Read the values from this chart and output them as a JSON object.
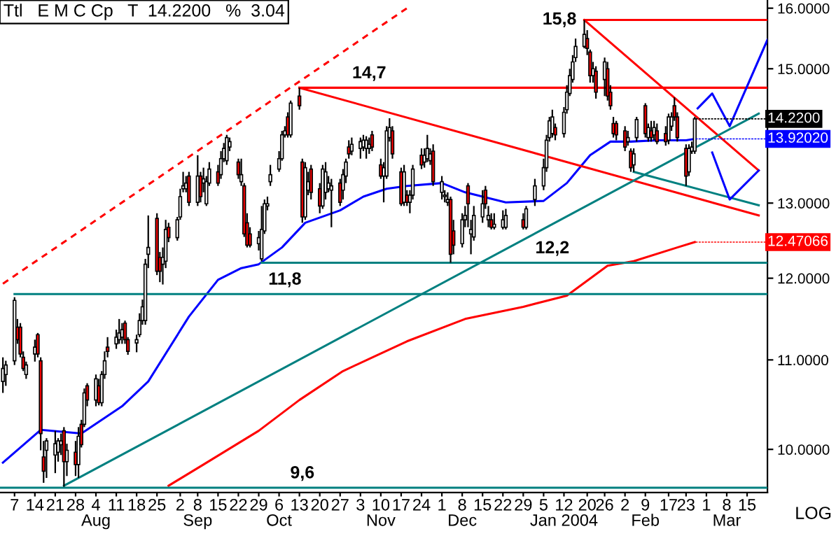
{
  "chart_data": {
    "type": "candlestick",
    "title": "Ttl   E M C Cp   T  14.2200   %  3.04",
    "log": true,
    "legend": false,
    "grid": false,
    "ylim": [
      9.55,
      16.14
    ],
    "xlim": [
      "2003-07-02",
      "2004-03-22"
    ],
    "xticks": [
      {
        "value": "2003-07-07",
        "label": "7"
      },
      {
        "value": "2003-07-14",
        "label": "14"
      },
      {
        "value": "2003-07-21",
        "label": "21"
      },
      {
        "value": "2003-07-28",
        "label": "28"
      },
      {
        "value": "2003-08-04",
        "label": "4\nAug"
      },
      {
        "value": "2003-08-11",
        "label": "11"
      },
      {
        "value": "2003-08-18",
        "label": "18"
      },
      {
        "value": "2003-08-25",
        "label": "25"
      },
      {
        "value": "2003-09-02",
        "label": "2"
      },
      {
        "value": "2003-09-08",
        "label": "8\nSep"
      },
      {
        "value": "2003-09-15",
        "label": "15"
      },
      {
        "value": "2003-09-22",
        "label": "22"
      },
      {
        "value": "2003-09-29",
        "label": "29"
      },
      {
        "value": "2003-10-06",
        "label": "6\nOct"
      },
      {
        "value": "2003-10-13",
        "label": "13"
      },
      {
        "value": "2003-10-20",
        "label": "20"
      },
      {
        "value": "2003-10-27",
        "label": "27"
      },
      {
        "value": "2003-11-03",
        "label": "3"
      },
      {
        "value": "2003-11-10",
        "label": "10\nNov"
      },
      {
        "value": "2003-11-17",
        "label": "17"
      },
      {
        "value": "2003-11-24",
        "label": "24"
      },
      {
        "value": "2003-12-01",
        "label": "1"
      },
      {
        "value": "2003-12-08",
        "label": "8\nDec"
      },
      {
        "value": "2003-12-15",
        "label": "15"
      },
      {
        "value": "2003-12-22",
        "label": "22"
      },
      {
        "value": "2003-12-29",
        "label": "29"
      },
      {
        "value": "2004-01-05",
        "label": "5"
      },
      {
        "value": "2004-01-12",
        "label": "12\nJan 2004"
      },
      {
        "value": "2004-01-20",
        "label": "20"
      },
      {
        "value": "2004-01-26",
        "label": "26"
      },
      {
        "value": "2004-02-02",
        "label": "2"
      },
      {
        "value": "2004-02-09",
        "label": "9\nFeb"
      },
      {
        "value": "2004-02-17",
        "label": "17"
      },
      {
        "value": "2004-02-23",
        "label": "23"
      },
      {
        "value": "2004-03-01",
        "label": "1"
      },
      {
        "value": "2004-03-08",
        "label": "8\nMar"
      },
      {
        "value": "2004-03-15",
        "label": "15"
      }
    ],
    "yticks": [
      {
        "value": 10,
        "label": "10.0000"
      },
      {
        "value": 11,
        "label": "11.0000"
      },
      {
        "value": 12,
        "label": "12.0000"
      },
      {
        "value": 13,
        "label": "13.0000"
      },
      {
        "value": 15,
        "label": "15.0000"
      },
      {
        "value": 16,
        "label": "16.0000"
      }
    ],
    "annotations": [
      {
        "text": "15,8",
        "x": "2004-01-19",
        "y": 15.8
      },
      {
        "text": "14,7",
        "x": "2003-11-06",
        "y": 14.7
      },
      {
        "text": "12,2",
        "x": "2004-01-08",
        "y": 12.2
      },
      {
        "text": "11,8",
        "x": "2003-10-08",
        "y": 11.8
      },
      {
        "text": "9,6",
        "x": "2003-10-14",
        "y": 9.6
      },
      "LOG"
    ],
    "series": [
      {
        "color": "#000000",
        "x": [
          "2003-07-03",
          "2003-07-04",
          "2003-07-07",
          "2003-07-08",
          "2003-07-09",
          "2003-07-10",
          "2003-07-11",
          "2003-07-14",
          "2003-07-15",
          "2003-07-16",
          "2003-07-17",
          "2003-07-18",
          "2003-07-21",
          "2003-07-22",
          "2003-07-23",
          "2003-07-24",
          "2003-07-25",
          "2003-07-28",
          "2003-07-29",
          "2003-07-30",
          "2003-07-31",
          "2003-08-01",
          "2003-08-04",
          "2003-08-05",
          "2003-08-06",
          "2003-08-07",
          "2003-08-08",
          "2003-08-11",
          "2003-08-12",
          "2003-08-13",
          "2003-08-14",
          "2003-08-15",
          "2003-08-18",
          "2003-08-19",
          "2003-08-20",
          "2003-08-21",
          "2003-08-22",
          "2003-08-25",
          "2003-08-26",
          "2003-08-27",
          "2003-08-28",
          "2003-08-29",
          "2003-09-01",
          "2003-09-02",
          "2003-09-03",
          "2003-09-04",
          "2003-09-05",
          "2003-09-08",
          "2003-09-09",
          "2003-09-10",
          "2003-09-11",
          "2003-09-12",
          "2003-09-15",
          "2003-09-16",
          "2003-09-17",
          "2003-09-18",
          "2003-09-19",
          "2003-09-22",
          "2003-09-23",
          "2003-09-24",
          "2003-09-25",
          "2003-09-26",
          "2003-09-29",
          "2003-09-30",
          "2003-10-01",
          "2003-10-02",
          "2003-10-03",
          "2003-10-06",
          "2003-10-07",
          "2003-10-08",
          "2003-10-09",
          "2003-10-10",
          "2003-10-13",
          "2003-10-14",
          "2003-10-15",
          "2003-10-16",
          "2003-10-17",
          "2003-10-20",
          "2003-10-21",
          "2003-10-22",
          "2003-10-23",
          "2003-10-24",
          "2003-10-27",
          "2003-10-28",
          "2003-10-29",
          "2003-10-30",
          "2003-10-31",
          "2003-11-03",
          "2003-11-04",
          "2003-11-05",
          "2003-11-06",
          "2003-11-07",
          "2003-11-10",
          "2003-11-11",
          "2003-11-12",
          "2003-11-13",
          "2003-11-14",
          "2003-11-17",
          "2003-11-18",
          "2003-11-19",
          "2003-11-20",
          "2003-11-21",
          "2003-11-24",
          "2003-11-25",
          "2003-11-26",
          "2003-11-27",
          "2003-11-28",
          "2003-12-01",
          "2003-12-02",
          "2003-12-03",
          "2003-12-04",
          "2003-12-05",
          "2003-12-08",
          "2003-12-09",
          "2003-12-10",
          "2003-12-11",
          "2003-12-12",
          "2003-12-15",
          "2003-12-16",
          "2003-12-17",
          "2003-12-18",
          "2003-12-19",
          "2003-12-22",
          "2003-12-23",
          "2003-12-29",
          "2003-12-30",
          "2004-01-02",
          "2004-01-05",
          "2004-01-06",
          "2004-01-07",
          "2004-01-08",
          "2004-01-09",
          "2004-01-12",
          "2004-01-13",
          "2004-01-14",
          "2004-01-15",
          "2004-01-16",
          "2004-01-19",
          "2004-01-20",
          "2004-01-21",
          "2004-01-22",
          "2004-01-23",
          "2004-01-26",
          "2004-01-27",
          "2004-01-28",
          "2004-01-29",
          "2004-01-30",
          "2004-02-02",
          "2004-02-03",
          "2004-02-04",
          "2004-02-05",
          "2004-02-06",
          "2004-02-09",
          "2004-02-10",
          "2004-02-11",
          "2004-02-12",
          "2004-02-13",
          "2004-02-16",
          "2004-02-17",
          "2004-02-18",
          "2004-02-19",
          "2004-02-20",
          "2004-02-23",
          "2004-02-24",
          "2004-02-25",
          "2004-02-26"
        ],
        "ohlc": [
          [
            10.75,
            11.03,
            10.62,
            10.9
          ],
          [
            10.83,
            10.99,
            10.7,
            10.94
          ],
          [
            10.99,
            11.76,
            10.94,
            11.72
          ],
          [
            11.39,
            11.49,
            11.19,
            11.24
          ],
          [
            11.39,
            11.44,
            11.03,
            11.07
          ],
          [
            11.03,
            11.1,
            10.87,
            10.9
          ],
          [
            10.83,
            10.98,
            10.78,
            10.94
          ],
          [
            11.07,
            11.24,
            10.98,
            11.15
          ],
          [
            11.3,
            11.32,
            11.03,
            11.07
          ],
          [
            10.99,
            11.03,
            9.99,
            10.17
          ],
          [
            9.92,
            10.09,
            9.65,
            9.77
          ],
          [
            9.99,
            10.12,
            9.7,
            10.09
          ],
          [
            9.94,
            10.2,
            9.75,
            10.06
          ],
          [
            9.97,
            10.12,
            9.87,
            10.09
          ],
          [
            10.05,
            10.17,
            9.94,
            10.09
          ],
          [
            10.2,
            10.24,
            9.61,
            9.87
          ],
          [
            9.87,
            10.06,
            9.72,
            9.99
          ],
          [
            9.97,
            10.09,
            9.72,
            9.84
          ],
          [
            9.84,
            10.24,
            9.7,
            10.14
          ],
          [
            10.27,
            10.32,
            10.02,
            10.05
          ],
          [
            10.27,
            10.67,
            10.24,
            10.62
          ],
          [
            10.7,
            10.73,
            10.47,
            10.54
          ],
          [
            10.54,
            10.83,
            10.47,
            10.78
          ],
          [
            10.7,
            10.78,
            10.48,
            10.51
          ],
          [
            10.51,
            10.87,
            10.47,
            10.83
          ],
          [
            10.83,
            11.1,
            10.78,
            10.99
          ],
          [
            11.15,
            11.27,
            11.03,
            11.1
          ],
          [
            11.19,
            11.36,
            11.13,
            11.27
          ],
          [
            11.24,
            11.49,
            11.19,
            11.32
          ],
          [
            11.27,
            11.44,
            11.19,
            11.36
          ],
          [
            11.44,
            11.47,
            11.19,
            11.24
          ],
          [
            11.24,
            11.27,
            11.06,
            11.1
          ],
          [
            11.2,
            11.3,
            11.09,
            11.24
          ],
          [
            11.3,
            11.56,
            11.27,
            11.47
          ],
          [
            11.47,
            11.73,
            11.42,
            11.64
          ],
          [
            11.47,
            12.25,
            11.42,
            12.18
          ],
          [
            12.31,
            12.83,
            12.13,
            12.4
          ],
          [
            12.79,
            12.86,
            12.04,
            12.09
          ],
          [
            12.27,
            12.34,
            11.95,
            12.09
          ],
          [
            12.18,
            12.4,
            11.92,
            12.27
          ],
          [
            12.22,
            12.77,
            12.13,
            12.64
          ],
          [
            12.67,
            12.73,
            12.47,
            12.53
          ],
          [
            12.53,
            12.81,
            12.49,
            12.77
          ],
          [
            12.81,
            13.2,
            12.77,
            13.09
          ],
          [
            13.2,
            13.44,
            13.15,
            13.24
          ],
          [
            13.2,
            13.38,
            13.15,
            13.28
          ],
          [
            13.38,
            13.44,
            12.96,
            13.01
          ],
          [
            13.01,
            13.68,
            12.96,
            13.38
          ],
          [
            13.38,
            13.44,
            13.01,
            13.09
          ],
          [
            13.28,
            13.5,
            13.15,
            13.34
          ],
          [
            12.99,
            13.38,
            12.96,
            13.3
          ],
          [
            13.28,
            13.58,
            13.24,
            13.48
          ],
          [
            13.44,
            13.54,
            13.24,
            13.28
          ],
          [
            13.4,
            13.74,
            13.34,
            13.63
          ],
          [
            13.63,
            13.86,
            13.58,
            13.78
          ],
          [
            13.6,
            13.98,
            13.54,
            13.94
          ],
          [
            13.8,
            13.94,
            13.74,
            13.88
          ],
          [
            13.58,
            13.63,
            13.34,
            13.4
          ],
          [
            13.3,
            13.63,
            13.24,
            13.4
          ],
          [
            13.24,
            13.28,
            12.54,
            12.58
          ],
          [
            12.73,
            12.86,
            12.4,
            12.43
          ],
          [
            12.58,
            12.67,
            12.4,
            12.43
          ],
          [
            12.45,
            12.62,
            12.36,
            12.53
          ],
          [
            12.25,
            12.96,
            12.22,
            12.64
          ],
          [
            12.62,
            13.05,
            12.58,
            12.99
          ],
          [
            12.96,
            13.09,
            12.9,
            12.99
          ],
          [
            13.3,
            13.54,
            13.24,
            13.4
          ],
          [
            13.48,
            13.74,
            13.44,
            13.63
          ],
          [
            13.63,
            14.04,
            13.6,
            13.98
          ],
          [
            13.98,
            14.11,
            13.94,
            14.04
          ],
          [
            14.25,
            14.32,
            13.94,
            13.98
          ],
          [
            13.98,
            14.5,
            13.94,
            14.46
          ],
          [
            14.57,
            14.7,
            14.36,
            14.42
          ],
          [
            13.58,
            13.63,
            12.73,
            12.81
          ],
          [
            12.81,
            13.58,
            12.77,
            13.5
          ],
          [
            13.18,
            13.44,
            13.11,
            13.3
          ],
          [
            13.48,
            13.54,
            13.05,
            13.15
          ],
          [
            13.2,
            13.28,
            12.86,
            12.96
          ],
          [
            12.96,
            13.54,
            12.92,
            13.48
          ],
          [
            13.15,
            13.58,
            13.05,
            13.44
          ],
          [
            13.2,
            13.38,
            13.15,
            13.28
          ],
          [
            13.18,
            13.34,
            12.67,
            13.24
          ],
          [
            13.28,
            13.34,
            12.96,
            13.01
          ],
          [
            13.18,
            13.48,
            13.05,
            13.4
          ],
          [
            13.38,
            13.63,
            13.28,
            13.58
          ],
          [
            13.8,
            13.9,
            13.63,
            13.7
          ],
          [
            13.74,
            13.94,
            13.68,
            13.84
          ],
          [
            13.78,
            13.94,
            13.63,
            13.88
          ],
          [
            13.8,
            13.98,
            13.74,
            13.9
          ],
          [
            13.78,
            13.96,
            13.63,
            13.9
          ],
          [
            13.78,
            13.94,
            13.7,
            13.84
          ],
          [
            13.98,
            14.04,
            13.74,
            13.8
          ],
          [
            13.54,
            13.63,
            13.34,
            13.38
          ],
          [
            13.38,
            13.58,
            13.01,
            13.5
          ],
          [
            13.38,
            14.11,
            13.34,
            14.04
          ],
          [
            13.94,
            14.23,
            13.88,
            14.09
          ],
          [
            14.04,
            14.11,
            13.63,
            13.7
          ],
          [
            13.44,
            13.5,
            12.96,
            12.99
          ],
          [
            13.01,
            13.54,
            12.96,
            13.44
          ],
          [
            13.11,
            13.18,
            12.96,
            13.01
          ],
          [
            13.01,
            13.18,
            12.86,
            13.11
          ],
          [
            13.11,
            13.54,
            13.05,
            13.48
          ],
          [
            13.68,
            13.78,
            13.48,
            13.54
          ],
          [
            13.58,
            13.78,
            13.5,
            13.68
          ],
          [
            13.63,
            13.98,
            13.58,
            13.78
          ],
          [
            13.6,
            13.78,
            13.54,
            13.7
          ],
          [
            13.74,
            13.84,
            13.24,
            13.3
          ],
          [
            13.15,
            13.38,
            13.05,
            13.3
          ],
          [
            13.09,
            13.18,
            13.01,
            13.11
          ],
          [
            13.01,
            13.15,
            12.96,
            13.05
          ],
          [
            13.05,
            13.09,
            12.2,
            12.31
          ],
          [
            12.62,
            12.77,
            12.31,
            12.43
          ],
          [
            12.45,
            12.86,
            12.4,
            12.77
          ],
          [
            12.77,
            12.96,
            12.67,
            12.83
          ],
          [
            13.24,
            13.28,
            12.67,
            12.99
          ],
          [
            12.58,
            12.77,
            12.31,
            12.64
          ],
          [
            12.54,
            12.96,
            12.49,
            12.83
          ],
          [
            12.81,
            13.18,
            12.73,
            12.99
          ],
          [
            13.18,
            13.24,
            12.92,
            12.99
          ],
          [
            12.77,
            12.96,
            12.67,
            12.83
          ],
          [
            12.77,
            12.86,
            12.64,
            12.67
          ],
          [
            12.67,
            12.86,
            12.64,
            12.71
          ],
          [
            12.67,
            12.9,
            12.64,
            12.77
          ],
          [
            12.67,
            12.92,
            12.64,
            12.83
          ],
          [
            12.77,
            12.86,
            12.64,
            12.67
          ],
          [
            12.67,
            12.96,
            12.64,
            12.92
          ],
          [
            13.05,
            13.34,
            12.96,
            13.24
          ],
          [
            13.24,
            13.63,
            13.18,
            13.5
          ],
          [
            13.5,
            13.98,
            13.44,
            13.9
          ],
          [
            13.94,
            14.25,
            13.88,
            14.19
          ],
          [
            14.0,
            14.36,
            13.94,
            14.25
          ],
          [
            14.09,
            14.15,
            13.9,
            13.98
          ],
          [
            14.0,
            14.4,
            13.94,
            14.32
          ],
          [
            14.36,
            14.74,
            14.3,
            14.63
          ],
          [
            14.61,
            15.0,
            14.57,
            14.89
          ],
          [
            14.83,
            15.22,
            14.78,
            15.11
          ],
          [
            15.18,
            15.49,
            15.11,
            15.36
          ],
          [
            15.36,
            15.8,
            15.33,
            15.56
          ],
          [
            15.49,
            15.63,
            15.22,
            15.33
          ],
          [
            15.27,
            15.31,
            14.78,
            14.89
          ],
          [
            14.89,
            15.11,
            14.78,
            15.0
          ],
          [
            14.96,
            15.04,
            14.53,
            14.63
          ],
          [
            14.83,
            15.18,
            14.57,
            15.11
          ],
          [
            15.0,
            15.11,
            14.5,
            14.57
          ],
          [
            14.63,
            14.74,
            14.36,
            14.42
          ],
          [
            14.15,
            14.25,
            13.94,
            14.0
          ],
          [
            14.15,
            14.19,
            13.9,
            13.98
          ],
          [
            14.04,
            14.11,
            13.74,
            13.8
          ],
          [
            13.88,
            14.04,
            13.82,
            13.94
          ],
          [
            13.74,
            13.78,
            13.44,
            13.5
          ],
          [
            13.54,
            13.78,
            13.44,
            13.7
          ],
          [
            13.94,
            14.25,
            13.88,
            14.21
          ],
          [
            14.42,
            14.46,
            13.94,
            14.0
          ],
          [
            13.94,
            14.15,
            13.88,
            14.09
          ],
          [
            14.04,
            14.19,
            13.88,
            13.94
          ],
          [
            13.98,
            14.19,
            13.9,
            14.09
          ],
          [
            14.04,
            14.15,
            13.84,
            13.88
          ],
          [
            14.0,
            14.11,
            13.82,
            13.88
          ],
          [
            13.9,
            14.3,
            13.84,
            14.25
          ],
          [
            14.11,
            14.32,
            14.04,
            14.25
          ],
          [
            14.42,
            14.55,
            14.19,
            14.25
          ],
          [
            14.25,
            14.32,
            13.88,
            13.94
          ],
          [
            13.78,
            13.84,
            13.24,
            13.38
          ],
          [
            13.44,
            13.84,
            13.38,
            13.78
          ],
          [
            13.74,
            13.88,
            13.7,
            13.8
          ],
          [
            13.74,
            14.25,
            13.7,
            14.22
          ]
        ],
        "value_labels": [
          null,
          null,
          null,
          null,
          null,
          null,
          null,
          null,
          null,
          null,
          null,
          null,
          null,
          null,
          null,
          null,
          null,
          null,
          null,
          null,
          null,
          null,
          null,
          null,
          null,
          null,
          null,
          null,
          null,
          null,
          null,
          null,
          null,
          null,
          null,
          null,
          null,
          null,
          null,
          null,
          null,
          null,
          null,
          null,
          null,
          null,
          null,
          null,
          null,
          null,
          null,
          null,
          null,
          null,
          null,
          null,
          null,
          null,
          null,
          null,
          null,
          null,
          null,
          null,
          null,
          null,
          null,
          null,
          null,
          null,
          null,
          null,
          null,
          null,
          null,
          null,
          null,
          null,
          null,
          null,
          null,
          null,
          null,
          null,
          null,
          null,
          null,
          null,
          null,
          null,
          null,
          null,
          null,
          null,
          null,
          null,
          null,
          null,
          null,
          null,
          null,
          null,
          null,
          null,
          null,
          null,
          null,
          null,
          null,
          null,
          null,
          null,
          null,
          null,
          null,
          null,
          null,
          null,
          null,
          null,
          null,
          null,
          null,
          null,
          null,
          null,
          null,
          null,
          null,
          null,
          null,
          null,
          null,
          null,
          null,
          null,
          null,
          null,
          null,
          null,
          null,
          null,
          null,
          null,
          null,
          null,
          null,
          null,
          null,
          null,
          null,
          null,
          null,
          null,
          null,
          null,
          null,
          null,
          null,
          null,
          null,
          null,
          null,
          null,
          null,
          "14.2200"
        ]
      },
      {
        "type": "line",
        "color": "#0000ff",
        "x": [
          "2003-07-03",
          "2003-07-16",
          "2003-07-30",
          "2003-08-13",
          "2003-08-22",
          "2003-09-05",
          "2003-09-15",
          "2003-09-23",
          "2003-09-29",
          "2003-10-07",
          "2003-10-15",
          "2003-10-27",
          "2003-11-04",
          "2003-11-12",
          "2003-11-19",
          "2003-12-01",
          "2003-12-09",
          "2003-12-23",
          "2004-01-05",
          "2004-01-13",
          "2004-01-21",
          "2004-01-28",
          "2004-02-04",
          "2004-02-13",
          "2004-02-23",
          "2004-02-26"
        ],
        "values": [
          9.86,
          10.21,
          10.17,
          10.47,
          10.75,
          11.52,
          11.98,
          12.13,
          12.18,
          12.4,
          12.73,
          12.9,
          13.09,
          13.2,
          13.24,
          13.28,
          13.15,
          13.01,
          13.03,
          13.28,
          13.68,
          13.88,
          13.88,
          13.9,
          13.9,
          13.9202
        ],
        "value_labels": [
          null,
          null,
          null,
          null,
          null,
          null,
          null,
          null,
          null,
          null,
          null,
          null,
          null,
          null,
          null,
          null,
          null,
          null,
          null,
          null,
          null,
          null,
          null,
          null,
          null,
          "13.92020"
        ]
      },
      {
        "type": "line",
        "color": "#ff0000",
        "x": [
          "2003-08-29",
          "2003-09-10",
          "2003-09-29",
          "2003-10-13",
          "2003-10-28",
          "2003-11-19",
          "2003-12-09",
          "2003-12-29",
          "2004-01-13",
          "2004-01-27",
          "2004-02-05",
          "2004-02-20",
          "2004-02-26"
        ],
        "values": [
          9.62,
          9.84,
          10.2,
          10.54,
          10.87,
          11.22,
          11.49,
          11.64,
          11.78,
          12.16,
          12.22,
          12.4,
          12.47066
        ],
        "value_labels": [
          null,
          null,
          null,
          null,
          null,
          null,
          null,
          null,
          null,
          null,
          null,
          null,
          "12.47066"
        ]
      },
      {
        "type": "line",
        "color": "#ff0000",
        "x": [
          "2004-01-19",
          "2004-03-22"
        ],
        "values": [
          15.8,
          15.8
        ]
      },
      {
        "type": "line",
        "color": "#ff0000",
        "x": [
          "2003-10-13",
          "2004-03-22"
        ],
        "values": [
          14.7,
          14.7
        ]
      },
      {
        "type": "line",
        "color": "#008080",
        "x": [
          "2003-09-30",
          "2004-03-22"
        ],
        "values": [
          12.2,
          12.2
        ]
      },
      {
        "type": "line",
        "color": "#008080",
        "x": [
          "2003-07-07",
          "2004-03-22"
        ],
        "values": [
          11.8,
          11.8
        ]
      },
      {
        "type": "line",
        "color": "#008080",
        "x": [
          "2003-07-02",
          "2004-03-22"
        ],
        "values": [
          9.6,
          9.6
        ]
      },
      {
        "type": "line",
        "color": "#ff0000",
        "line_style": "dashed",
        "x": [
          "2003-07-03",
          "2003-11-19"
        ],
        "values": [
          11.93,
          16.0
        ]
      },
      {
        "type": "line",
        "color": "#ff0000",
        "x": [
          "2003-10-13",
          "2004-03-19"
        ],
        "values": [
          14.7,
          12.83
        ]
      },
      {
        "type": "line",
        "color": "#ff0000",
        "x": [
          "2004-01-19",
          "2004-03-19"
        ],
        "values": [
          15.8,
          13.46
        ]
      },
      {
        "type": "line",
        "color": "#008080",
        "x": [
          "2003-07-24",
          "2004-03-19"
        ],
        "values": [
          9.62,
          14.3
        ]
      },
      {
        "type": "line",
        "color": "#008080",
        "x": [
          "2004-02-05",
          "2004-03-19"
        ],
        "values": [
          13.44,
          12.97
        ]
      },
      {
        "type": "line",
        "color": "#0000ff",
        "x": [
          "2004-02-27",
          "2004-03-03",
          "2004-03-09",
          "2004-03-22"
        ],
        "values": [
          14.38,
          14.61,
          14.11,
          15.47
        ]
      },
      {
        "type": "line",
        "color": "#0000ff",
        "x": [
          "2004-03-03",
          "2004-03-09",
          "2004-03-19"
        ],
        "values": [
          13.72,
          13.05,
          13.46
        ]
      }
    ]
  }
}
